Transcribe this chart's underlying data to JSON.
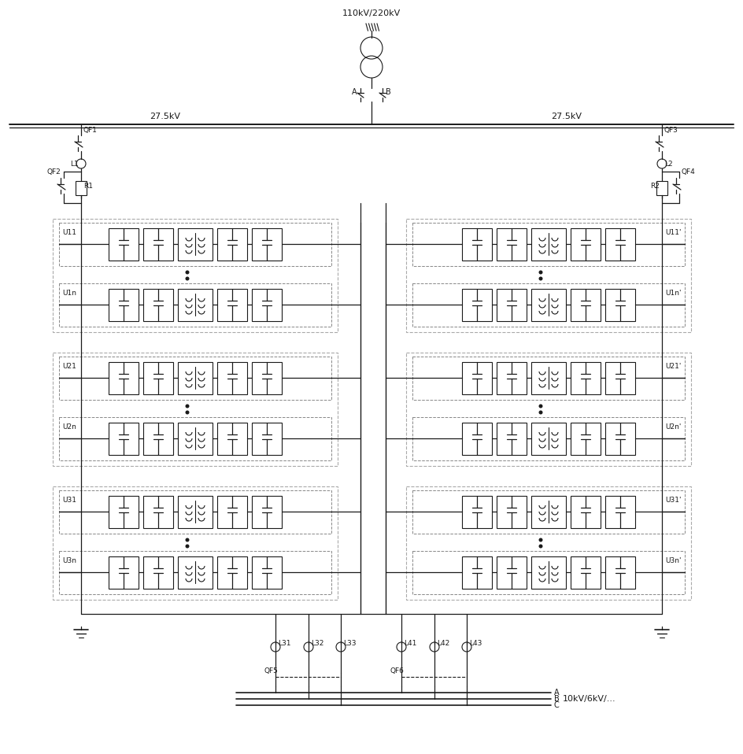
{
  "bg_color": "#ffffff",
  "line_color": "#1a1a1a",
  "dash_color": "#888888",
  "title_text": "110kV/220kV",
  "label_27_5_left": "27.5kV",
  "label_27_5_right": "27.5kV",
  "label_A": "A",
  "label_B": "B",
  "label_QF1": "QF1",
  "label_QF2": "QF2",
  "label_QF3": "QF3",
  "label_QF4": "QF4",
  "label_QF5": "QF5",
  "label_QF6": "QF6",
  "label_L1": "L1",
  "label_L2": "L2",
  "label_R1": "R1",
  "label_R2": "R2",
  "label_U11": "U11",
  "label_U1n": "U1n",
  "label_U21": "U21",
  "label_U2n": "U2n",
  "label_U31": "U31",
  "label_U3n": "U3n",
  "label_U11p": "U11'",
  "label_U1np": "U1n'",
  "label_U21p": "U21'",
  "label_U2np": "U2n'",
  "label_U31p": "U31'",
  "label_U3np": "U3n'",
  "label_L31": "L31",
  "label_L32": "L32",
  "label_L33": "L33",
  "label_L41": "L41",
  "label_L42": "L42",
  "label_L43": "L43",
  "label_bottom": "10kV/6kV/...",
  "label_bA": "A",
  "label_bB": "B",
  "label_bC": "C",
  "figsize": [
    9.44,
    9.58
  ],
  "dpi": 100
}
